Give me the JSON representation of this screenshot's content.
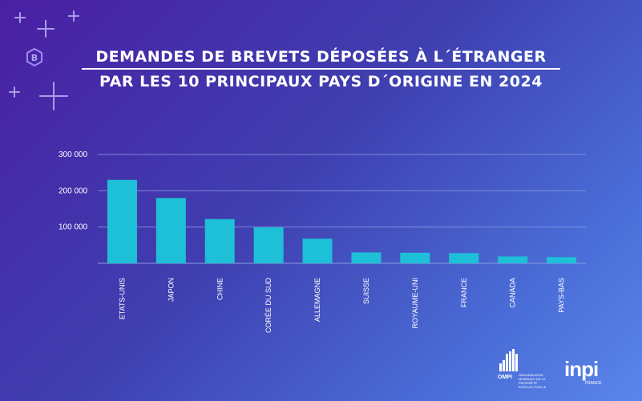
{
  "header": {
    "line1": "DEMANDES DE BREVETS DÉPOSÉES À L´ÉTRANGER",
    "line2": "PAR LES 10 PRINCIPAUX PAYS D´ORIGINE EN 2024"
  },
  "colors": {
    "bar": "#1ec0d8",
    "grid": "#8a9be0",
    "text": "#ffffff"
  },
  "logos": {
    "ompi_name": "OMPI",
    "ompi_subtitle": "ORGANISATION MONDIALE DE LA PROPRIÉTÉ INTELLECTUELLE",
    "inpi_name": "inpi",
    "inpi_subtitle": "FRANCE"
  },
  "chart_data": {
    "type": "bar",
    "title": "DEMANDES DE BREVETS DÉPOSÉES À L´ÉTRANGER PAR LES 10 PRINCIPAUX PAYS D´ORIGINE EN 2024",
    "categories": [
      "ETATS-UNIS",
      "JAPON",
      "CHINE",
      "CORÉE DU SUD",
      "ALLEMAGNE",
      "SUISSE",
      "ROYAUME-UNI",
      "FRANCE",
      "CANADA",
      "PAYS-BAS"
    ],
    "values": [
      230000,
      180000,
      122000,
      99000,
      68000,
      30000,
      29000,
      28000,
      19000,
      17000
    ],
    "ylim": [
      0,
      300000
    ],
    "yticks": [
      100000,
      200000,
      300000
    ],
    "ytick_labels": [
      "100 000",
      "200 000",
      "300 000"
    ],
    "xlabel": "",
    "ylabel": "",
    "grid": true,
    "legend": "none"
  }
}
